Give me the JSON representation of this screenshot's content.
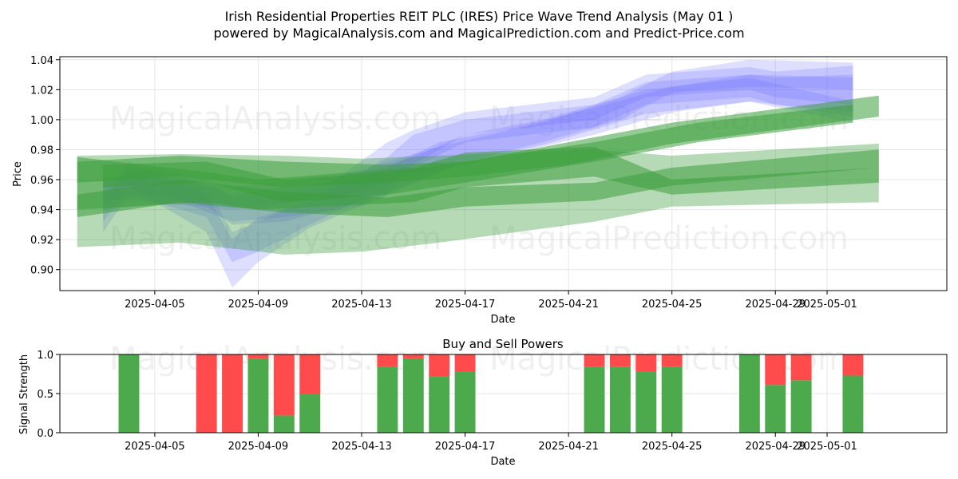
{
  "title_line1": "Irish Residential Properties REIT PLC (IRES) Price Wave Trend Analysis (May 01 )",
  "title_line2": "powered by MagicalAnalysis.com and MagicalPrediction.com and Predict-Price.com",
  "watermarks": [
    "MagicalAnalysis.com",
    "MagicalPrediction.com"
  ],
  "colors": {
    "buy": "#4caa4c",
    "sell": "#ff4b4b",
    "blue_band": "#6b6bff",
    "green_band": "#3c9e3c",
    "grid": "#e6e6e6"
  },
  "chart_data": [
    {
      "type": "area",
      "xlabel": "Date",
      "ylabel": "Price",
      "ylim": [
        0.886,
        1.042
      ],
      "xlim": [
        "2025-04-02",
        "2025-05-04"
      ],
      "grid": true,
      "x_ticks": [
        "2025-04-05",
        "2025-04-09",
        "2025-04-13",
        "2025-04-17",
        "2025-04-21",
        "2025-04-25",
        "2025-04-29",
        "2025-05-01"
      ],
      "y_ticks": [
        0.9,
        0.92,
        0.94,
        0.96,
        0.98,
        1.0,
        1.02,
        1.04
      ],
      "blue_bands": [
        {
          "x": [
            "2025-04-03",
            "2025-04-04",
            "2025-04-07",
            "2025-04-08",
            "2025-04-09",
            "2025-04-11",
            "2025-04-14",
            "2025-04-15",
            "2025-04-17",
            "2025-04-22",
            "2025-04-24",
            "2025-04-28",
            "2025-04-29",
            "2025-05-02"
          ],
          "upper": [
            0.945,
            0.968,
            0.955,
            0.925,
            0.932,
            0.948,
            0.985,
            0.993,
            1.005,
            1.015,
            1.03,
            1.035,
            1.032,
            1.036
          ],
          "lower": [
            0.925,
            0.95,
            0.935,
            0.905,
            0.912,
            0.93,
            0.955,
            0.97,
            0.99,
            1.0,
            1.015,
            1.02,
            1.015,
            1.01
          ]
        },
        {
          "x": [
            "2025-04-03",
            "2025-04-04",
            "2025-04-07",
            "2025-04-08",
            "2025-04-09",
            "2025-04-11",
            "2025-04-14",
            "2025-04-15",
            "2025-04-17",
            "2025-04-22",
            "2025-04-24",
            "2025-04-28",
            "2025-04-29",
            "2025-05-02"
          ],
          "upper": [
            0.95,
            0.972,
            0.95,
            0.92,
            0.935,
            0.945,
            0.975,
            0.99,
            1.0,
            1.01,
            1.025,
            1.03,
            1.028,
            1.03
          ],
          "lower": [
            0.932,
            0.955,
            0.925,
            0.888,
            0.905,
            0.928,
            0.95,
            0.968,
            0.985,
            0.995,
            1.01,
            1.015,
            1.01,
            1.002
          ]
        },
        {
          "x": [
            "2025-04-03",
            "2025-04-05",
            "2025-04-07",
            "2025-04-08",
            "2025-04-10",
            "2025-04-13",
            "2025-04-15",
            "2025-04-17",
            "2025-04-20",
            "2025-04-23",
            "2025-04-25",
            "2025-04-28",
            "2025-05-02"
          ],
          "upper": [
            0.96,
            0.968,
            0.96,
            0.948,
            0.95,
            0.965,
            0.975,
            0.99,
            1.0,
            1.015,
            1.032,
            1.04,
            1.038
          ],
          "lower": [
            0.945,
            0.95,
            0.942,
            0.93,
            0.932,
            0.945,
            0.958,
            0.972,
            0.985,
            1.0,
            1.018,
            1.022,
            1.02
          ]
        },
        {
          "x": [
            "2025-04-03",
            "2025-04-06",
            "2025-04-08",
            "2025-04-10",
            "2025-04-13",
            "2025-04-16",
            "2025-04-19",
            "2025-04-22",
            "2025-04-25",
            "2025-04-28",
            "2025-05-02"
          ],
          "upper": [
            0.958,
            0.962,
            0.95,
            0.955,
            0.96,
            0.985,
            0.995,
            1.008,
            1.022,
            1.03,
            1.028
          ],
          "lower": [
            0.94,
            0.945,
            0.932,
            0.935,
            0.942,
            0.965,
            0.978,
            0.99,
            1.005,
            1.012,
            1.005
          ]
        },
        {
          "x": [
            "2025-04-03",
            "2025-04-08",
            "2025-04-12",
            "2025-04-16",
            "2025-04-20",
            "2025-04-24",
            "2025-04-28",
            "2025-05-02"
          ],
          "upper": [
            0.962,
            0.955,
            0.962,
            0.982,
            0.998,
            1.02,
            1.028,
            1.012
          ],
          "lower": [
            0.948,
            0.94,
            0.948,
            0.968,
            0.983,
            1.004,
            1.012,
            0.998
          ]
        }
      ],
      "green_bands": [
        {
          "x": [
            "2025-04-02",
            "2025-04-06",
            "2025-04-10",
            "2025-04-13",
            "2025-04-16",
            "2025-04-22",
            "2025-04-25",
            "2025-05-03"
          ],
          "upper": [
            0.976,
            0.977,
            0.976,
            0.974,
            0.976,
            0.98,
            0.976,
            0.984
          ],
          "lower": [
            0.915,
            0.918,
            0.91,
            0.912,
            0.918,
            0.932,
            0.942,
            0.945
          ]
        },
        {
          "x": [
            "2025-04-02",
            "2025-04-06",
            "2025-04-10",
            "2025-04-14",
            "2025-04-17",
            "2025-04-22",
            "2025-04-25",
            "2025-05-03"
          ],
          "upper": [
            0.95,
            0.96,
            0.952,
            0.948,
            0.955,
            0.958,
            0.968,
            0.98
          ],
          "lower": [
            0.935,
            0.945,
            0.938,
            0.935,
            0.942,
            0.946,
            0.956,
            0.968
          ]
        },
        {
          "x": [
            "2025-04-02",
            "2025-04-06",
            "2025-04-10",
            "2025-04-14",
            "2025-04-17",
            "2025-04-21",
            "2025-04-25",
            "2025-05-03"
          ],
          "upper": [
            0.972,
            0.976,
            0.972,
            0.97,
            0.972,
            0.985,
            0.998,
            1.016
          ],
          "lower": [
            0.958,
            0.962,
            0.955,
            0.958,
            0.962,
            0.97,
            0.984,
            1.002
          ]
        },
        {
          "x": [
            "2025-04-03",
            "2025-04-07",
            "2025-04-10",
            "2025-04-14",
            "2025-04-17",
            "2025-04-22",
            "2025-04-26",
            "2025-05-02"
          ],
          "upper": [
            0.97,
            0.972,
            0.96,
            0.965,
            0.972,
            0.985,
            0.998,
            1.01
          ],
          "lower": [
            0.955,
            0.958,
            0.945,
            0.95,
            0.958,
            0.972,
            0.985,
            0.998
          ]
        },
        {
          "x": [
            "2025-04-02",
            "2025-04-07",
            "2025-04-09",
            "2025-04-15",
            "2025-04-17",
            "2025-04-22",
            "2025-04-25",
            "2025-05-03"
          ],
          "upper": [
            0.975,
            0.965,
            0.96,
            0.968,
            0.978,
            0.982,
            0.96,
            0.968
          ],
          "lower": [
            0.94,
            0.945,
            0.94,
            0.945,
            0.955,
            0.962,
            0.95,
            0.958
          ]
        }
      ]
    },
    {
      "type": "bar",
      "title": "Buy and Sell Powers",
      "xlabel": "Date",
      "ylabel": "Signal Strength",
      "ylim": [
        0,
        1.0
      ],
      "y_ticks": [
        0.0,
        0.5,
        1.0
      ],
      "x_ticks": [
        "2025-04-05",
        "2025-04-09",
        "2025-04-13",
        "2025-04-17",
        "2025-04-21",
        "2025-04-25",
        "2025-04-29",
        "2025-05-01"
      ],
      "categories": [
        "2025-04-04",
        "2025-04-07",
        "2025-04-08",
        "2025-04-09",
        "2025-04-10",
        "2025-04-11",
        "2025-04-14",
        "2025-04-15",
        "2025-04-16",
        "2025-04-17",
        "2025-04-22",
        "2025-04-23",
        "2025-04-24",
        "2025-04-25",
        "2025-04-28",
        "2025-04-29",
        "2025-04-30",
        "2025-05-02"
      ],
      "series": [
        {
          "values": [
            1.0,
            0.0,
            0.0,
            0.95,
            0.22,
            0.49,
            0.84,
            0.95,
            0.72,
            0.78,
            0.84,
            0.84,
            0.78,
            0.84,
            1.0,
            0.61,
            0.67,
            0.73
          ]
        },
        {
          "values": [
            0.0,
            1.0,
            1.0,
            0.05,
            0.78,
            0.51,
            0.16,
            0.05,
            0.28,
            0.22,
            0.16,
            0.16,
            0.22,
            0.16,
            0.0,
            0.39,
            0.33,
            0.27
          ]
        }
      ]
    }
  ]
}
